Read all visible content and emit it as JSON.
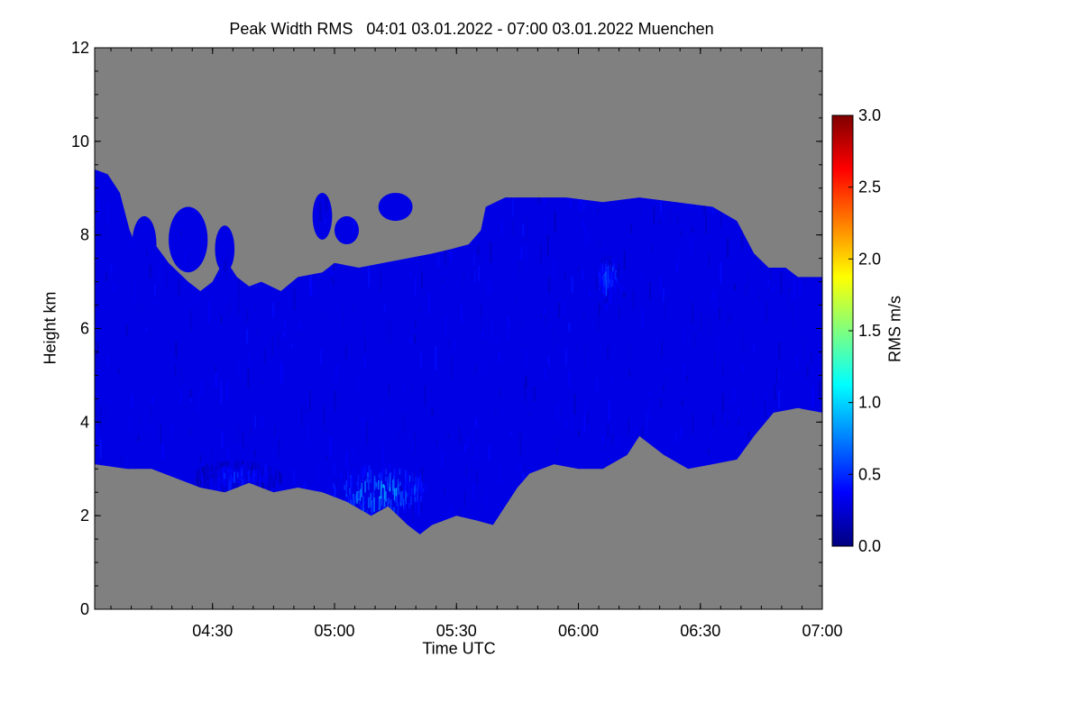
{
  "chart_data": {
    "type": "heatmap",
    "title": "Peak Width RMS   04:01 03.01.2022 - 07:00 03.01.2022 Muenchen",
    "xlabel": "Time UTC",
    "ylabel": "Height km",
    "x_range_hours": [
      4.0167,
      7.0
    ],
    "y_range_km": [
      0,
      12
    ],
    "x_ticks": [
      {
        "value": 4.5,
        "label": "04:30"
      },
      {
        "value": 5.0,
        "label": "05:00"
      },
      {
        "value": 5.5,
        "label": "05:30"
      },
      {
        "value": 6.0,
        "label": "06:00"
      },
      {
        "value": 6.5,
        "label": "06:30"
      },
      {
        "value": 7.0,
        "label": "07:00"
      }
    ],
    "y_ticks": [
      {
        "value": 0,
        "label": "0"
      },
      {
        "value": 2,
        "label": "2"
      },
      {
        "value": 4,
        "label": "4"
      },
      {
        "value": 6,
        "label": "6"
      },
      {
        "value": 8,
        "label": "8"
      },
      {
        "value": 10,
        "label": "10"
      },
      {
        "value": 12,
        "label": "12"
      }
    ],
    "colorbar": {
      "label": "RMS m/s",
      "range": [
        0.0,
        3.0
      ],
      "ticks": [
        {
          "value": 0.0,
          "label": "0.0"
        },
        {
          "value": 0.5,
          "label": "0.5"
        },
        {
          "value": 1.0,
          "label": "1.0"
        },
        {
          "value": 1.5,
          "label": "1.5"
        },
        {
          "value": 2.0,
          "label": "2.0"
        },
        {
          "value": 2.5,
          "label": "2.5"
        },
        {
          "value": 3.0,
          "label": "3.0"
        }
      ],
      "colormap": [
        "#00007f",
        "#0000ff",
        "#007fff",
        "#00ffff",
        "#7fff7f",
        "#ffff00",
        "#ff7f00",
        "#ff0000",
        "#7f0000"
      ]
    },
    "no_data_color": "#808080",
    "echo_region": {
      "description_values": "approximate cloud/echo envelope in data units (hours, km)",
      "top_boundary": [
        [
          4.0167,
          9.4
        ],
        [
          4.07,
          9.3
        ],
        [
          4.12,
          8.9
        ],
        [
          4.16,
          8.1
        ],
        [
          4.2,
          7.6
        ],
        [
          4.25,
          7.9
        ],
        [
          4.32,
          7.4
        ],
        [
          4.4,
          7.0
        ],
        [
          4.45,
          6.8
        ],
        [
          4.5,
          7.0
        ],
        [
          4.55,
          7.5
        ],
        [
          4.6,
          7.1
        ],
        [
          4.65,
          6.9
        ],
        [
          4.7,
          7.0
        ],
        [
          4.78,
          6.8
        ],
        [
          4.85,
          7.1
        ],
        [
          4.95,
          7.2
        ],
        [
          5.0,
          7.4
        ],
        [
          5.1,
          7.3
        ],
        [
          5.2,
          7.4
        ],
        [
          5.3,
          7.5
        ],
        [
          5.4,
          7.6
        ],
        [
          5.48,
          7.7
        ],
        [
          5.55,
          7.8
        ],
        [
          5.6,
          8.1
        ],
        [
          5.62,
          8.6
        ],
        [
          5.7,
          8.8
        ],
        [
          5.8,
          8.8
        ],
        [
          5.95,
          8.8
        ],
        [
          6.1,
          8.7
        ],
        [
          6.25,
          8.8
        ],
        [
          6.4,
          8.7
        ],
        [
          6.55,
          8.6
        ],
        [
          6.65,
          8.3
        ],
        [
          6.72,
          7.6
        ],
        [
          6.78,
          7.3
        ],
        [
          6.85,
          7.3
        ],
        [
          6.9,
          7.1
        ],
        [
          7.0,
          7.1
        ]
      ],
      "bottom_boundary": [
        [
          7.0,
          4.2
        ],
        [
          6.9,
          4.3
        ],
        [
          6.8,
          4.2
        ],
        [
          6.72,
          3.7
        ],
        [
          6.65,
          3.2
        ],
        [
          6.55,
          3.1
        ],
        [
          6.45,
          3.0
        ],
        [
          6.35,
          3.3
        ],
        [
          6.25,
          3.7
        ],
        [
          6.2,
          3.3
        ],
        [
          6.1,
          3.0
        ],
        [
          6.0,
          3.0
        ],
        [
          5.9,
          3.1
        ],
        [
          5.8,
          2.9
        ],
        [
          5.75,
          2.6
        ],
        [
          5.7,
          2.2
        ],
        [
          5.65,
          1.8
        ],
        [
          5.58,
          1.9
        ],
        [
          5.5,
          2.0
        ],
        [
          5.4,
          1.8
        ],
        [
          5.35,
          1.6
        ],
        [
          5.3,
          1.8
        ],
        [
          5.22,
          2.2
        ],
        [
          5.15,
          2.0
        ],
        [
          5.05,
          2.3
        ],
        [
          4.95,
          2.5
        ],
        [
          4.85,
          2.6
        ],
        [
          4.75,
          2.5
        ],
        [
          4.65,
          2.7
        ],
        [
          4.55,
          2.5
        ],
        [
          4.45,
          2.6
        ],
        [
          4.35,
          2.8
        ],
        [
          4.25,
          3.0
        ],
        [
          4.15,
          3.0
        ],
        [
          4.0167,
          3.1
        ]
      ],
      "cloud_patches": [
        {
          "x_center": 4.22,
          "y_center": 7.8,
          "x_halfwidth": 0.05,
          "y_halfwidth": 0.6
        },
        {
          "x_center": 4.4,
          "y_center": 7.9,
          "x_halfwidth": 0.08,
          "y_halfwidth": 0.7
        },
        {
          "x_center": 4.55,
          "y_center": 7.7,
          "x_halfwidth": 0.04,
          "y_halfwidth": 0.5
        },
        {
          "x_center": 4.95,
          "y_center": 8.4,
          "x_halfwidth": 0.04,
          "y_halfwidth": 0.5
        },
        {
          "x_center": 5.05,
          "y_center": 8.1,
          "x_halfwidth": 0.05,
          "y_halfwidth": 0.3
        },
        {
          "x_center": 5.25,
          "y_center": 8.6,
          "x_halfwidth": 0.07,
          "y_halfwidth": 0.3
        }
      ],
      "enhanced_rms_regions": [
        {
          "x_center": 5.18,
          "y_center": 2.6,
          "x_halfwidth": 0.2,
          "y_halfwidth": 0.55,
          "rms": 0.9
        },
        {
          "x_center": 6.12,
          "y_center": 7.2,
          "x_halfwidth": 0.05,
          "y_halfwidth": 0.4,
          "rms": 0.7
        },
        {
          "x_center": 4.6,
          "y_center": 2.9,
          "x_halfwidth": 0.18,
          "y_halfwidth": 0.3,
          "rms": 0.5
        }
      ],
      "background_rms": 0.3
    }
  }
}
